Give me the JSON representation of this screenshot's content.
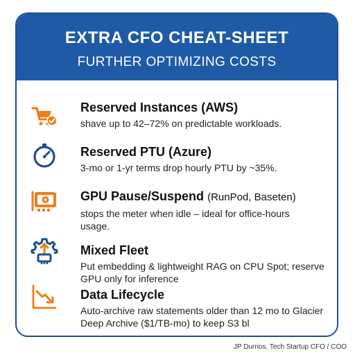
{
  "header": {
    "title": "EXTRA CFO CHEAT-SHEET",
    "subtitle": "FURTHER OPTIMIZING COSTS"
  },
  "items": [
    {
      "icon": "shopping-cart-check-icon",
      "title": "Reserved Instances (AWS)",
      "title_suffix": "",
      "description": "shave up to 42–72% on predictable workloads."
    },
    {
      "icon": "stopwatch-icon",
      "title": "Reserved PTU (Azure)",
      "title_suffix": "",
      "description": "3-mo or 1-yr terms drop hourly PTU by ~35%."
    },
    {
      "icon": "gpu-card-icon",
      "title": "GPU Pause/Suspend",
      "title_suffix": "(RunPod, Baseten)",
      "description": "stops the meter when idle – ideal for office-hours usage."
    },
    {
      "icon": "gear-cpu-icon",
      "title": "Mixed Fleet",
      "title_suffix": "",
      "description": "Put embedding & lightweight RAG on CPU Spot; reserve GPU only for inference"
    },
    {
      "icon": "downtrend-chart-icon",
      "title": "Data Lifecycle",
      "title_suffix": "",
      "description": "Auto-archive raw statements older than 12 mo to Glacier Deep Archive ($1/TB-mo) to keep S3 bl"
    }
  ],
  "footer": {
    "credit": "JP Durrios, Tech Startup CFO / COO"
  },
  "colors": {
    "header_bg": "#1f5aa6",
    "border": "#1d4e92",
    "icon_orange": "#f07d1a",
    "icon_blue": "#1d4e92"
  }
}
